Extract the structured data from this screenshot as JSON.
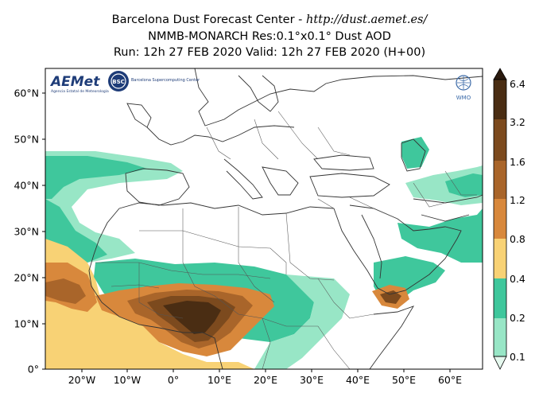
{
  "header": {
    "line1_prefix": "Barcelona Dust Forecast Center - ",
    "line1_url": "http://dust.aemet.es/",
    "line2": "NMMB-MONARCH   Res:0.1°x0.1°   Dust AOD",
    "line3": "Run: 12h 27 FEB 2020   Valid: 12h 27 FEB 2020 (H+00)"
  },
  "logos": {
    "aemet": "AEMet",
    "aemet_sub": "Agencia Estatal de Meteorología",
    "bsc": "BSC",
    "bsc_name": "Barcelona Supercomputing Center",
    "wmo": "WMO"
  },
  "axes": {
    "lat_labels": [
      "60°N",
      "50°N",
      "40°N",
      "30°N",
      "20°N",
      "10°N",
      "0°"
    ],
    "lon_labels": [
      "20°W",
      "10°W",
      "0°",
      "10°E",
      "20°E",
      "30°E",
      "40°E",
      "50°E",
      "60°E"
    ]
  },
  "colorbar": {
    "labels": [
      "6.4",
      "3.2",
      "1.6",
      "1.2",
      "0.8",
      "0.4",
      "0.2",
      "0.1"
    ],
    "colors": {
      "extreme": "#2b1b0e",
      "level1": "#4a2d13",
      "level2": "#7c4a1e",
      "level3": "#a9652a",
      "level4": "#d8883c",
      "level5": "#f8d275",
      "level6": "#3fc79c",
      "level7": "#98e6c6",
      "lowest": "#e6f9ef"
    }
  },
  "map": {
    "ocean_color": "#ffffff",
    "border_color": "#333333"
  }
}
